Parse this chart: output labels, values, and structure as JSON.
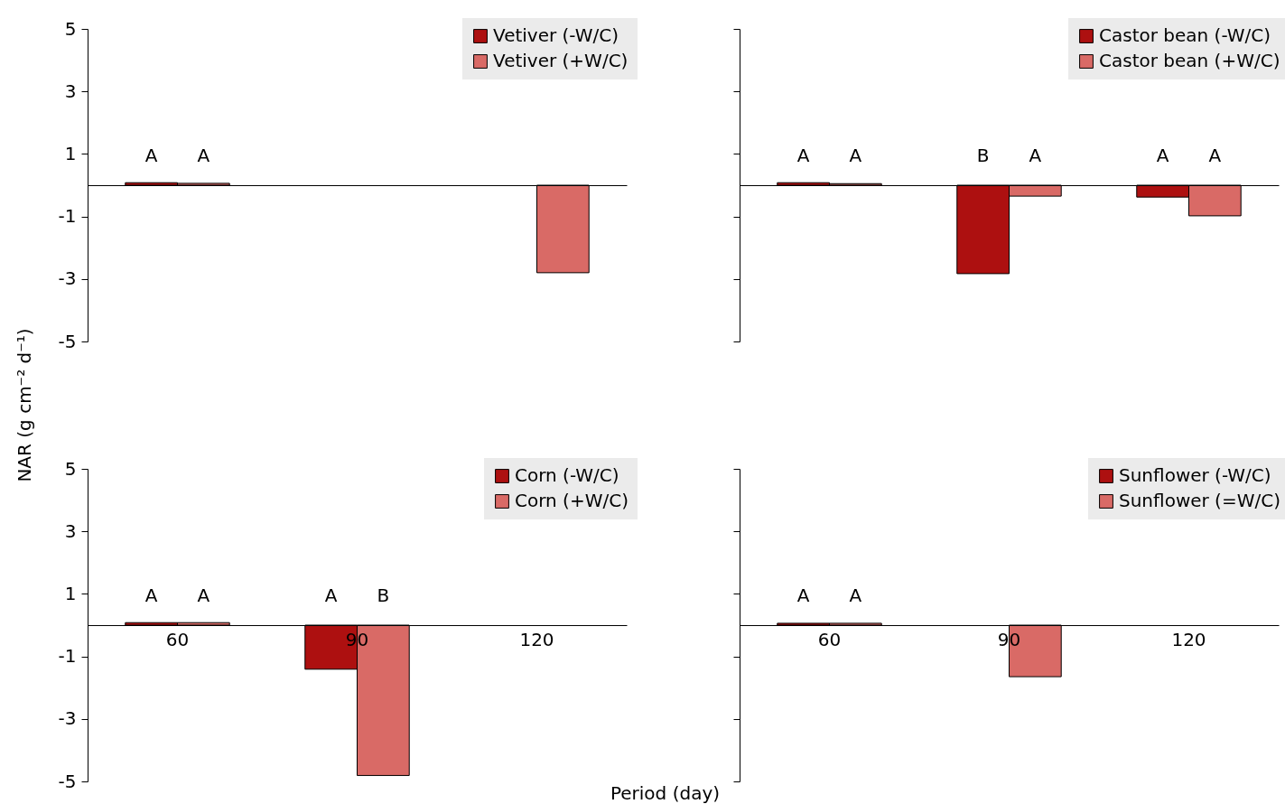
{
  "chart_data": [
    {
      "type": "bar",
      "ylabel": "NAR (g cm⁻² d⁻¹)",
      "categories": [
        "60",
        "90",
        "120"
      ],
      "ylim": [
        -5,
        5
      ],
      "yticks": [
        -5,
        -3,
        -1,
        1,
        3,
        5
      ],
      "legend": "top right",
      "tick_labels": "y",
      "series": [
        {
          "name": "Vetiver (-W/C)",
          "color": "#ad1010",
          "values": [
            0.08,
            null,
            null
          ],
          "value_labels": [
            "A",
            null,
            null
          ]
        },
        {
          "name": "Vetiver (+W/C)",
          "color": "#d96a66",
          "values": [
            0.06,
            null,
            -2.8
          ],
          "value_labels": [
            "A",
            null,
            null
          ]
        }
      ]
    },
    {
      "type": "bar",
      "categories": [
        "60",
        "90",
        "120"
      ],
      "ylim": [
        -5,
        5
      ],
      "yticks": [
        {
          "value": -5,
          "label": null
        },
        {
          "value": -3,
          "label": null
        },
        {
          "value": -1,
          "label": null
        },
        {
          "value": 1,
          "label": null
        },
        {
          "value": 3,
          "label": null
        },
        {
          "value": 5,
          "label": null
        }
      ],
      "legend": "top right",
      "tick_labels": false,
      "series": [
        {
          "name": "Castor bean (-W/C)",
          "color": "#ad1010",
          "values": [
            0.08,
            -2.83,
            -0.38
          ],
          "value_labels": [
            "A",
            "B",
            "A"
          ]
        },
        {
          "name": "Castor bean (+W/C)",
          "color": "#d96a66",
          "values": [
            0.05,
            -0.35,
            -0.98
          ],
          "value_labels": [
            "A",
            "A",
            "A"
          ]
        }
      ]
    },
    {
      "type": "bar",
      "xlabel": "Period (day)",
      "categories": [
        "60",
        "90",
        "120"
      ],
      "ylim": [
        -5,
        5
      ],
      "yticks": [
        -5,
        -3,
        -1,
        1,
        3,
        5
      ],
      "legend": "top right",
      "series": [
        {
          "name": "Corn (-W/C)",
          "color": "#ad1010",
          "values": [
            0.08,
            -1.41,
            null
          ],
          "value_labels": [
            "A",
            "A",
            null
          ]
        },
        {
          "name": "Corn (+W/C)",
          "color": "#d96a66",
          "values": [
            0.08,
            -4.81,
            null
          ],
          "value_labels": [
            "A",
            "B",
            null
          ]
        }
      ]
    },
    {
      "type": "bar",
      "categories": [
        "60",
        "90",
        "120"
      ],
      "ylim": [
        -5,
        5
      ],
      "yticks": [
        {
          "value": -5,
          "label": null
        },
        {
          "value": -3,
          "label": null
        },
        {
          "value": -1,
          "label": null
        },
        {
          "value": 1,
          "label": null
        },
        {
          "value": 3,
          "label": null
        },
        {
          "value": 5,
          "label": null
        }
      ],
      "legend": "top right",
      "tick_labels": "x",
      "series": [
        {
          "name": "Sunflower (-W/C)",
          "color": "#ad1010",
          "values": [
            0.06,
            null,
            null
          ],
          "value_labels": [
            "A",
            null,
            null
          ]
        },
        {
          "name": "Sunflower (=W/C)",
          "color": "#d96a66",
          "values": [
            0.06,
            -1.65,
            null
          ],
          "value_labels": [
            "A",
            null,
            null
          ]
        }
      ]
    }
  ]
}
